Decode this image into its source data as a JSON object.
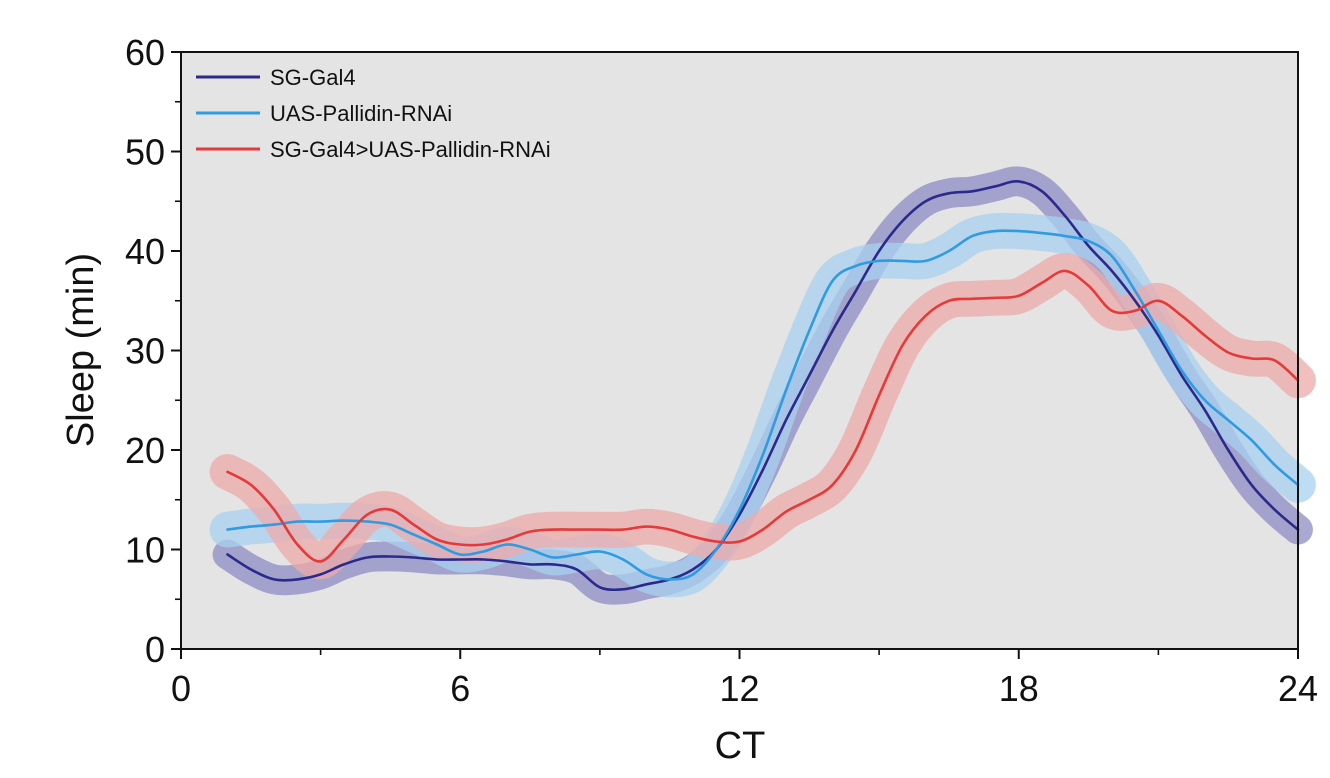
{
  "chart_data": {
    "type": "line",
    "title": "",
    "xlabel": "CT",
    "ylabel": "Sleep (min)",
    "xlim": [
      0,
      24
    ],
    "ylim": [
      0,
      60
    ],
    "xticks": [
      0,
      6,
      12,
      18,
      24
    ],
    "yticks": [
      0,
      10,
      20,
      30,
      40,
      50,
      60
    ],
    "grid": false,
    "legend_position": "top-left",
    "plot_background": "#e4e4e4",
    "series": [
      {
        "name": "SG-Gal4",
        "color": "#2b2a8c",
        "band_color": "#8c8cc4",
        "x": [
          1,
          1.5,
          2,
          2.5,
          3,
          3.5,
          4,
          4.5,
          5,
          5.5,
          6,
          6.5,
          7,
          7.5,
          8,
          8.5,
          9,
          9.5,
          10,
          10.5,
          11,
          11.5,
          12,
          12.5,
          13,
          13.5,
          14,
          14.5,
          15,
          15.5,
          16,
          16.5,
          17,
          17.5,
          18,
          18.5,
          19,
          19.5,
          20,
          20.5,
          21,
          21.5,
          22,
          22.5,
          23,
          23.5,
          24
        ],
        "y": [
          9.5,
          8,
          7,
          7,
          7.5,
          8.5,
          9.2,
          9.3,
          9.2,
          9,
          9,
          9,
          8.8,
          8.5,
          8.5,
          8,
          6.2,
          6,
          6.5,
          7,
          8,
          10,
          13.5,
          18,
          23,
          27.5,
          32,
          36,
          40,
          43,
          45,
          45.8,
          46,
          46.5,
          47,
          46,
          43.5,
          40.5,
          38,
          35,
          31.5,
          27.5,
          24,
          20,
          16.5,
          14,
          12
        ],
        "band": 1.5
      },
      {
        "name": "UAS-Pallidin-RNAi",
        "color": "#2f9be0",
        "band_color": "#a8d0f0",
        "x": [
          1,
          1.5,
          2,
          2.5,
          3,
          3.5,
          4,
          4.5,
          5,
          5.5,
          6,
          6.5,
          7,
          7.5,
          8,
          8.5,
          9,
          9.5,
          10,
          10.5,
          11,
          11.5,
          12,
          12.5,
          13,
          13.5,
          14,
          14.5,
          15,
          15.5,
          16,
          16.5,
          17,
          17.5,
          18,
          18.5,
          19,
          19.5,
          20,
          20.5,
          21,
          21.5,
          22,
          22.5,
          23,
          23.5,
          24
        ],
        "y": [
          12,
          12.3,
          12.5,
          12.8,
          12.8,
          12.9,
          12.8,
          12.5,
          11.5,
          10.5,
          9.5,
          9.8,
          10.5,
          10,
          9.2,
          9.5,
          9.8,
          9,
          7.5,
          7,
          7.5,
          10,
          14,
          19.5,
          26,
          32,
          37,
          38.5,
          39,
          39,
          39,
          40,
          41.5,
          42,
          42,
          41.8,
          41.5,
          41,
          39.5,
          36,
          32,
          28,
          25,
          23,
          21,
          18.5,
          16.5
        ],
        "band": 1.8
      },
      {
        "name": "SG-Gal4>UAS-Pallidin-RNAi",
        "color": "#e43a3a",
        "band_color": "#eeaaaa",
        "x": [
          1,
          1.5,
          2,
          2.5,
          3,
          3.5,
          4,
          4.5,
          5,
          5.5,
          6,
          6.5,
          7,
          7.5,
          8,
          8.5,
          9,
          9.5,
          10,
          10.5,
          11,
          11.5,
          12,
          12.5,
          13,
          13.5,
          14,
          14.5,
          15,
          15.5,
          16,
          16.5,
          17,
          17.5,
          18,
          18.5,
          19,
          19.5,
          20,
          20.5,
          21,
          21.5,
          22,
          22.5,
          23,
          23.5,
          24
        ],
        "y": [
          17.8,
          16.5,
          14,
          10.5,
          8.8,
          11,
          13.5,
          14,
          12.5,
          11,
          10.5,
          10.5,
          11,
          11.8,
          12,
          12,
          12,
          12,
          12.3,
          12,
          11.3,
          10.8,
          10.8,
          12,
          13.8,
          15,
          16.5,
          20,
          25.5,
          30.5,
          33.5,
          35,
          35.2,
          35.3,
          35.5,
          36.8,
          38,
          36.5,
          34,
          34,
          35,
          33.5,
          31.5,
          29.8,
          29.2,
          29,
          27
        ],
        "band": 1.8
      }
    ]
  }
}
